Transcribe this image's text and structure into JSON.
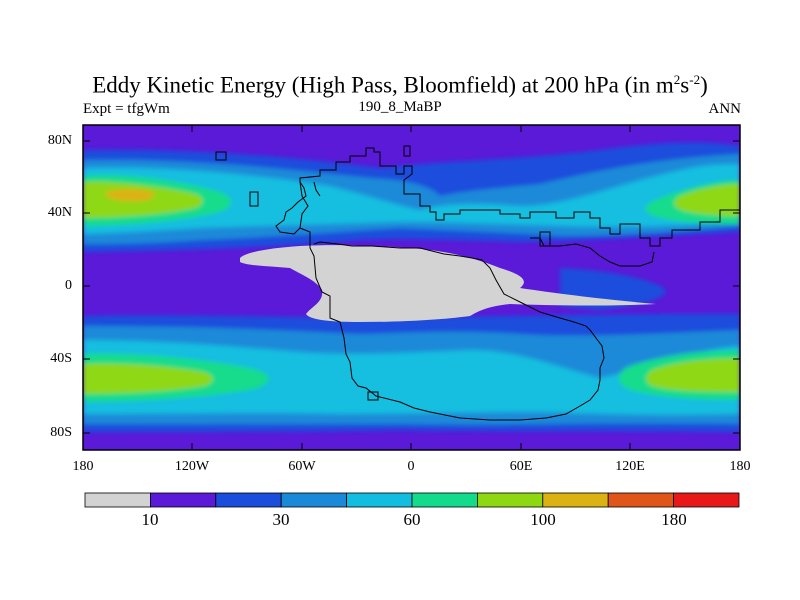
{
  "title": {
    "main": "Eddy Kinetic Energy (High Pass, Bloomfield) at 200 hPa (in m",
    "unit_exp1": "2",
    "unit_s": "s",
    "unit_exp2": "-2",
    "close": ")"
  },
  "subtitle_left": "Expt = tfgWm",
  "subtitle_center": "190_8_MaBP",
  "subtitle_right": "ANN",
  "lat_labels": [
    "80N",
    "40N",
    "0",
    "40S",
    "80S"
  ],
  "lon_labels": [
    "180",
    "120W",
    "60W",
    "0",
    "60E",
    "120E",
    "180"
  ],
  "colorbar": {
    "colors": [
      "#d3d3d3",
      "#5a1ad8",
      "#1a4ddc",
      "#1a8ad8",
      "#12bee0",
      "#12dc8c",
      "#8ed812",
      "#dcb212",
      "#e05618",
      "#e81818"
    ],
    "labels": [
      "10",
      "30",
      "60",
      "100",
      "180"
    ]
  },
  "map": {
    "background_color": "#5a1ad8",
    "land_mask_color": "#d3d3d3"
  }
}
